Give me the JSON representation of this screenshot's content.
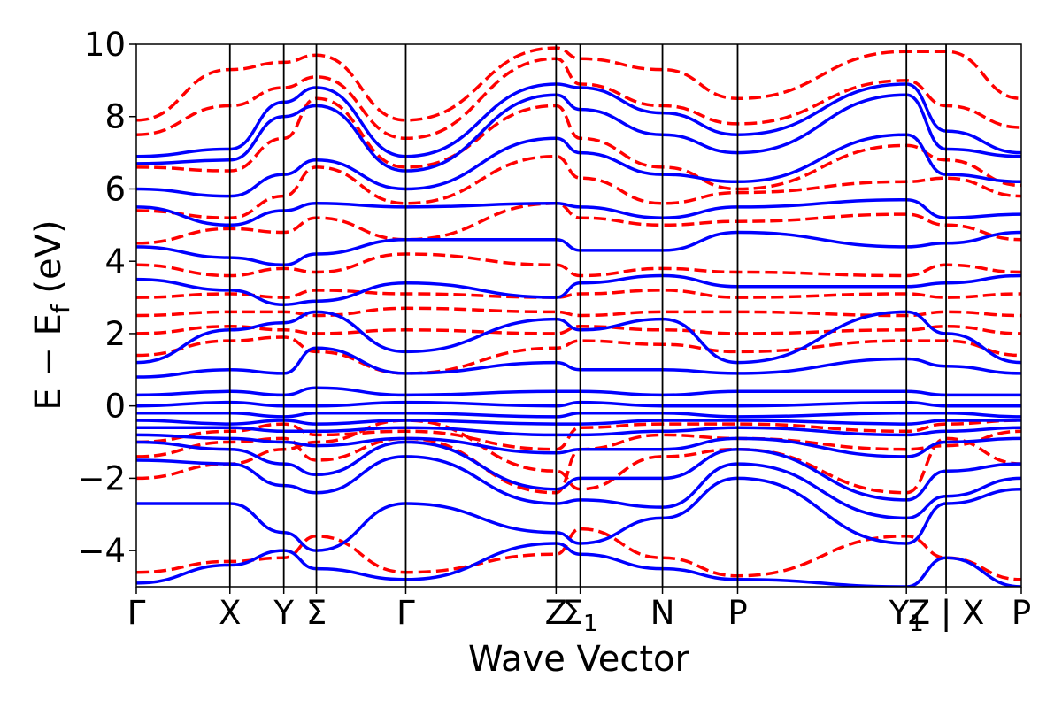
{
  "chart_data": {
    "type": "line",
    "title": "",
    "xlabel": "Wave Vector",
    "ylabel": {
      "base": "E − E",
      "sub": "f",
      "unit": " (eV)"
    },
    "ylim": [
      -5,
      10
    ],
    "yticks": [
      -4,
      -2,
      0,
      2,
      4,
      6,
      8,
      10
    ],
    "ytick_labels": [
      "−4",
      "−2",
      "0",
      "2",
      "4",
      "6",
      "8",
      "10"
    ],
    "grid": false,
    "legend": "none",
    "x_range": [
      0,
      8.73
    ],
    "high_symmetry_points": [
      {
        "x": 0.0,
        "label": "Γ",
        "sub": ""
      },
      {
        "x": 0.66,
        "label": "X",
        "sub": ""
      },
      {
        "x": 1.04,
        "label": "Y",
        "sub": ""
      },
      {
        "x": 1.27,
        "label": "Σ",
        "sub": ""
      },
      {
        "x": 1.9,
        "label": "Γ",
        "sub": ""
      },
      {
        "x": 2.96,
        "label": "Z",
        "sub": ""
      },
      {
        "x": 3.13,
        "label": "Σ",
        "sub": "1"
      },
      {
        "x": 3.71,
        "label": "N",
        "sub": ""
      },
      {
        "x": 4.24,
        "label": "P",
        "sub": ""
      },
      {
        "x": 5.43,
        "label": "Y",
        "sub": "1"
      },
      {
        "x": 5.71,
        "label": "Z | X",
        "sub": ""
      },
      {
        "x": 6.24,
        "label": "P",
        "sub": ""
      }
    ],
    "colors": {
      "series_a": "#ff0000",
      "series_b": "#0000ff",
      "axis": "#000000"
    },
    "series": [
      {
        "style": "dashed",
        "color": "#ff0000",
        "bands": [
          [
            -4.6,
            -4.3,
            -4.2,
            -3.6,
            -4.6,
            -4.1,
            -3.4,
            -4.2,
            -4.7,
            -3.6,
            -4.2,
            -4.8
          ],
          [
            -2.0,
            -1.6,
            -1.2,
            -1.0,
            -0.4,
            -1.8,
            -2.3,
            -1.4,
            -1.2,
            -2.4,
            -0.9,
            -1.6
          ],
          [
            -1.4,
            -1.0,
            -0.9,
            -1.5,
            -0.9,
            -2.4,
            -1.2,
            -0.8,
            -0.9,
            -1.2,
            -1.1,
            -0.7
          ],
          [
            -1.0,
            -0.7,
            -0.5,
            -0.8,
            -0.7,
            -1.2,
            -0.6,
            -0.5,
            -0.5,
            -0.7,
            -0.5,
            -0.4
          ],
          [
            1.4,
            1.8,
            1.9,
            1.5,
            0.9,
            1.6,
            1.8,
            1.7,
            1.5,
            1.8,
            1.8,
            1.4
          ],
          [
            2.0,
            2.2,
            2.1,
            2.0,
            2.1,
            2.0,
            2.2,
            2.1,
            2.0,
            2.1,
            2.2,
            2.0
          ],
          [
            2.5,
            2.6,
            2.6,
            2.5,
            2.7,
            2.6,
            2.5,
            2.6,
            2.6,
            2.5,
            2.6,
            2.5
          ],
          [
            3.0,
            3.1,
            3.0,
            3.2,
            3.1,
            3.0,
            3.1,
            3.2,
            3.0,
            3.1,
            3.0,
            3.1
          ],
          [
            3.9,
            3.6,
            3.8,
            3.7,
            4.2,
            3.9,
            3.6,
            3.8,
            3.7,
            3.6,
            3.9,
            3.7
          ],
          [
            4.5,
            4.9,
            4.8,
            5.2,
            4.6,
            5.6,
            5.2,
            5.0,
            5.1,
            5.3,
            5.0,
            4.6
          ],
          [
            5.4,
            5.2,
            5.8,
            6.6,
            5.6,
            6.9,
            6.3,
            5.6,
            5.9,
            6.2,
            6.3,
            5.8
          ],
          [
            6.6,
            6.5,
            7.4,
            8.5,
            6.6,
            8.3,
            7.4,
            6.6,
            6.0,
            7.2,
            6.8,
            6.1
          ],
          [
            7.5,
            8.3,
            8.8,
            9.1,
            7.4,
            9.6,
            8.9,
            8.3,
            7.8,
            9.0,
            8.3,
            7.7
          ],
          [
            7.9,
            9.3,
            9.5,
            9.7,
            7.9,
            9.9,
            9.6,
            9.3,
            8.5,
            9.8,
            9.8,
            8.5
          ]
        ]
      },
      {
        "style": "solid",
        "color": "#0000ff",
        "bands": [
          [
            -4.9,
            -4.4,
            -4.0,
            -4.5,
            -4.8,
            -3.8,
            -4.1,
            -4.5,
            -4.8,
            -5.0,
            -4.2,
            -5.0
          ],
          [
            -2.7,
            -2.7,
            -3.5,
            -4.0,
            -2.7,
            -3.5,
            -3.8,
            -3.1,
            -2.0,
            -3.8,
            -2.7,
            -2.3
          ],
          [
            -1.5,
            -1.6,
            -2.2,
            -2.4,
            -1.4,
            -2.7,
            -2.6,
            -2.8,
            -1.6,
            -3.1,
            -2.5,
            -2.0
          ],
          [
            -1.0,
            -1.2,
            -1.6,
            -1.9,
            -1.0,
            -2.3,
            -2.0,
            -2.0,
            -1.2,
            -2.6,
            -1.8,
            -1.6
          ],
          [
            -0.8,
            -0.9,
            -1.0,
            -1.1,
            -0.9,
            -1.3,
            -1.2,
            -1.2,
            -0.9,
            -1.4,
            -1.0,
            -0.9
          ],
          [
            -0.6,
            -0.6,
            -0.7,
            -0.7,
            -0.6,
            -0.8,
            -0.8,
            -0.7,
            -0.6,
            -0.8,
            -0.7,
            -0.6
          ],
          [
            -0.4,
            -0.5,
            -0.4,
            -0.5,
            -0.4,
            -0.5,
            -0.5,
            -0.4,
            -0.4,
            -0.5,
            -0.4,
            -0.4
          ],
          [
            -0.2,
            -0.2,
            -0.3,
            -0.2,
            -0.2,
            -0.3,
            -0.2,
            -0.2,
            -0.3,
            -0.2,
            -0.2,
            -0.3
          ],
          [
            0.0,
            0.1,
            0.0,
            0.0,
            0.1,
            0.0,
            0.1,
            0.0,
            0.0,
            0.1,
            0.0,
            0.0
          ],
          [
            0.3,
            0.4,
            0.3,
            0.5,
            0.3,
            0.4,
            0.4,
            0.3,
            0.4,
            0.4,
            0.3,
            0.3
          ],
          [
            0.8,
            1.0,
            0.9,
            1.6,
            0.9,
            1.2,
            1.0,
            1.0,
            0.9,
            1.3,
            1.1,
            0.9
          ],
          [
            1.2,
            2.1,
            2.3,
            2.6,
            1.5,
            2.4,
            2.1,
            2.4,
            1.2,
            2.6,
            2.0,
            1.2
          ],
          [
            3.5,
            3.2,
            2.8,
            2.9,
            3.4,
            3.0,
            3.4,
            3.6,
            3.3,
            3.3,
            3.4,
            3.6
          ],
          [
            4.4,
            4.1,
            3.9,
            4.2,
            4.6,
            4.6,
            4.3,
            4.3,
            4.8,
            4.4,
            4.5,
            4.8
          ],
          [
            5.5,
            5.0,
            5.4,
            5.6,
            5.5,
            5.6,
            5.5,
            5.2,
            5.5,
            5.7,
            5.2,
            5.3
          ],
          [
            6.0,
            5.8,
            6.4,
            6.8,
            6.0,
            7.4,
            7.0,
            6.4,
            6.2,
            7.5,
            6.4,
            6.2
          ],
          [
            6.7,
            6.8,
            8.0,
            8.3,
            6.5,
            8.6,
            8.2,
            7.5,
            7.0,
            8.6,
            7.1,
            6.9
          ],
          [
            6.9,
            7.1,
            8.4,
            8.8,
            6.9,
            8.9,
            8.8,
            8.1,
            7.5,
            8.9,
            7.6,
            7.0
          ]
        ]
      }
    ]
  }
}
